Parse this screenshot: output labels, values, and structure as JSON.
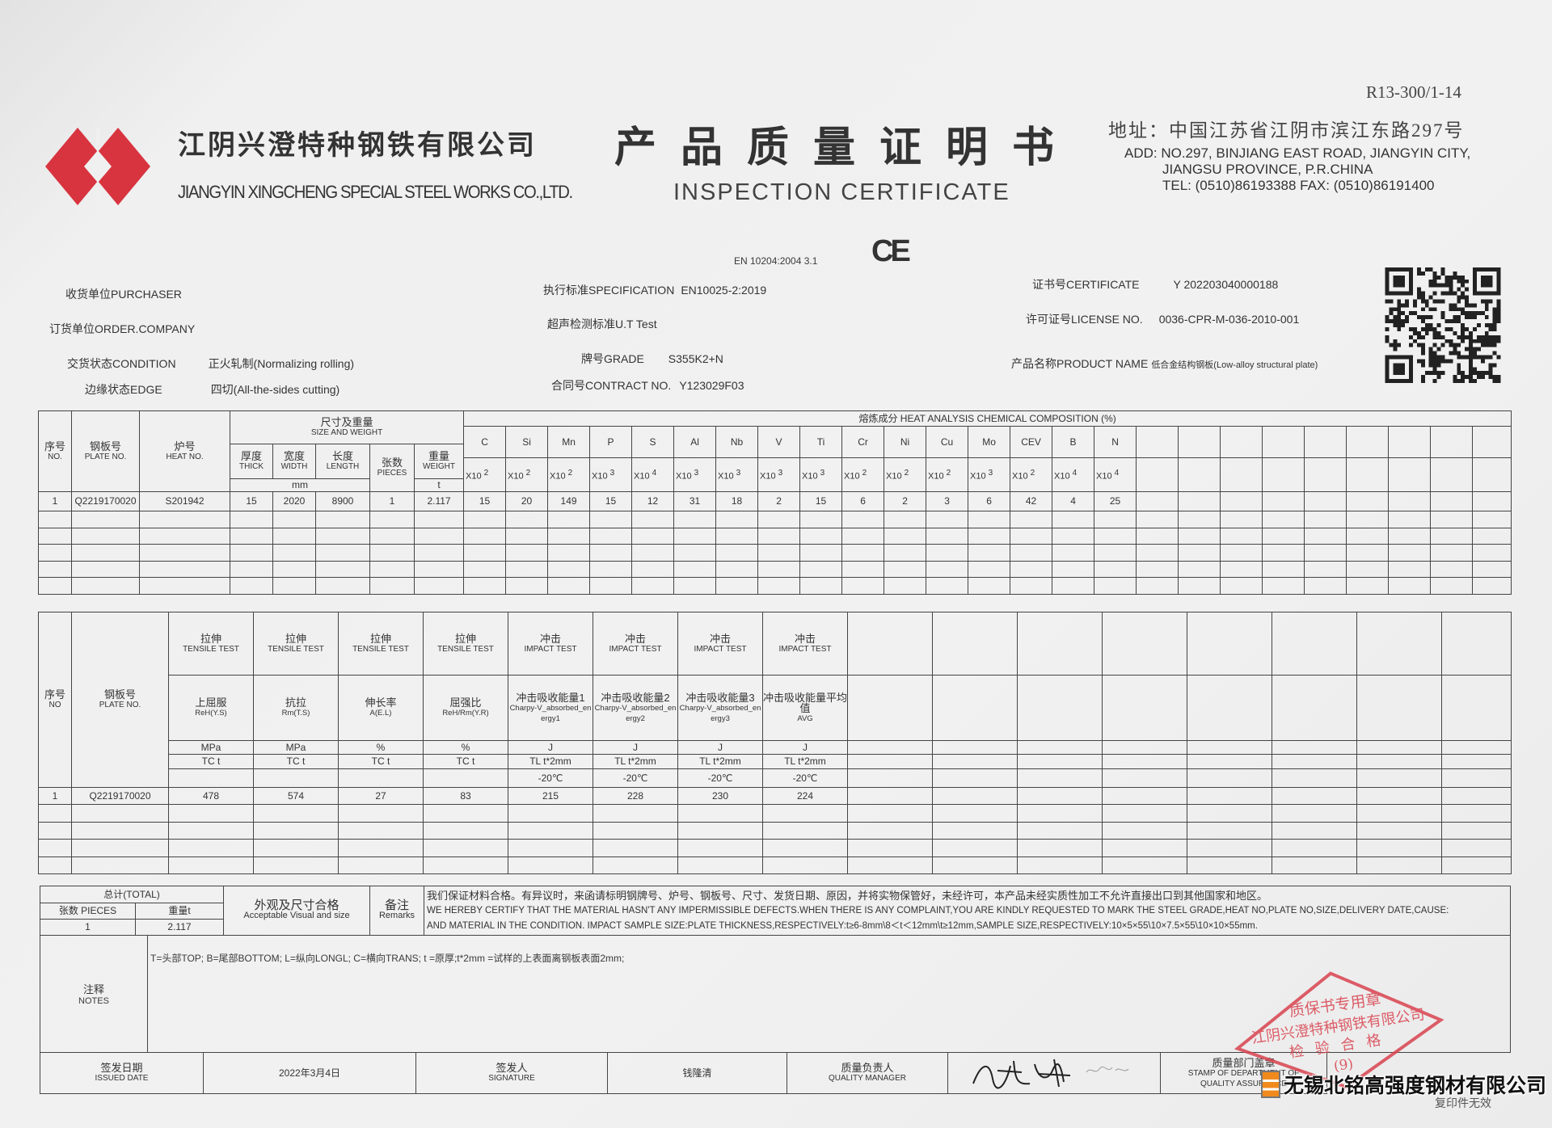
{
  "header": {
    "form_code": "R13-300/1-14",
    "company_cn": "江阴兴澄特种钢铁有限公司",
    "company_en": "JIANGYIN XINGCHENG SPECIAL STEEL WORKS CO.,LTD.",
    "title_cn": "产品质量证明书",
    "title_en": "INSPECTION CERTIFICATE",
    "address_cn": "地址：中国江苏省江阴市滨江东路297号",
    "address_en_1": "ADD:  NO.297, BINJIANG EAST ROAD, JIANGYIN CITY,",
    "address_en_2": "JIANGSU PROVINCE, P.R.CHINA",
    "tel_fax": "TEL: (0510)86193388   FAX: (0510)86191400",
    "en_standard": "EN 10204:2004 3.1",
    "ce_mark": "CE",
    "brand_color": "#d8343f"
  },
  "info": {
    "purchaser_label": "收货单位PURCHASER",
    "order_company_label": "订货单位ORDER.COMPANY",
    "condition_label": "交货状态CONDITION",
    "condition_value": "正火轧制(Normalizing rolling)",
    "edge_label": "边缘状态EDGE",
    "edge_value": "四切(All-the-sides cutting)",
    "spec_label": "执行标准SPECIFICATION",
    "spec_value": "EN10025-2:2019",
    "ut_label": "超声检测标准U.T Test",
    "grade_label": "牌号GRADE",
    "grade_value": "S355K2+N",
    "contract_label": "合同号CONTRACT  NO.",
    "contract_value": "Y123029F03",
    "certificate_label": "证书号CERTIFICATE",
    "certificate_value": "Y 202203040000188",
    "license_label": "许可证号LICENSE  NO.",
    "license_value": "0036-CPR-M-036-2010-001",
    "product_label": "产品名称PRODUCT  NAME",
    "product_value": "低合金结构钢板(Low-alloy structural plate)"
  },
  "chem_table": {
    "no_cn": "序号",
    "no_en": "NO.",
    "plate_cn": "钢板号",
    "plate_en": "PLATE NO.",
    "heat_cn": "炉号",
    "heat_en": "HEAT NO.",
    "size_cn": "尺寸及重量",
    "size_en": "SIZE AND WEIGHT",
    "thick_cn": "厚度",
    "thick_en": "THICK",
    "width_cn": "宽度",
    "width_en": "WIDTH",
    "length_cn": "长度",
    "length_en": "LENGTH",
    "pieces_cn": "张数",
    "pieces_en": "PIECES",
    "weight_cn": "重量",
    "weight_en": "WEIGHT",
    "unit_mm": "mm",
    "unit_t": "t",
    "chem_title": "熔炼成分 HEAT ANALYSIS CHEMICAL COMPOSITION (%)",
    "x10": "X10",
    "elements": [
      {
        "symbol": "C",
        "exp": "2"
      },
      {
        "symbol": "Si",
        "exp": "2"
      },
      {
        "symbol": "Mn",
        "exp": "2"
      },
      {
        "symbol": "P",
        "exp": "3"
      },
      {
        "symbol": "S",
        "exp": "4"
      },
      {
        "symbol": "Al",
        "exp": "3"
      },
      {
        "symbol": "Nb",
        "exp": "3"
      },
      {
        "symbol": "V",
        "exp": "3"
      },
      {
        "symbol": "Ti",
        "exp": "3"
      },
      {
        "symbol": "Cr",
        "exp": "2"
      },
      {
        "symbol": "Ni",
        "exp": "2"
      },
      {
        "symbol": "Cu",
        "exp": "2"
      },
      {
        "symbol": "Mo",
        "exp": "3"
      },
      {
        "symbol": "CEV",
        "exp": "2"
      },
      {
        "symbol": "B",
        "exp": "4"
      },
      {
        "symbol": "N",
        "exp": "4"
      }
    ],
    "rows": [
      {
        "no": "1",
        "plate": "Q2219170020",
        "heat": "S201942",
        "thick": "15",
        "width": "2020",
        "length": "8900",
        "pieces": "1",
        "weight": "2.117",
        "values": [
          "15",
          "20",
          "149",
          "15",
          "12",
          "31",
          "18",
          "2",
          "15",
          "6",
          "2",
          "3",
          "6",
          "42",
          "4",
          "25"
        ]
      }
    ]
  },
  "mech_table": {
    "no_cn": "序号",
    "no_en": "NO",
    "plate_cn": "钢板号",
    "plate_en": "PLATE NO.",
    "tests": [
      {
        "cn": "拉伸",
        "en": "TENSILE TEST",
        "prop_cn": "上屈服",
        "prop_en": "ReH(Y.S)",
        "unit": "MPa",
        "dir": "TC t",
        "temp": ""
      },
      {
        "cn": "拉伸",
        "en": "TENSILE TEST",
        "prop_cn": "抗拉",
        "prop_en": "Rm(T.S)",
        "unit": "MPa",
        "dir": "TC t",
        "temp": ""
      },
      {
        "cn": "拉伸",
        "en": "TENSILE TEST",
        "prop_cn": "伸长率",
        "prop_en": "A(E.L)",
        "unit": "%",
        "dir": "TC t",
        "temp": ""
      },
      {
        "cn": "拉伸",
        "en": "TENSILE TEST",
        "prop_cn": "屈强比",
        "prop_en": "ReH/Rm(Y.R)",
        "unit": "%",
        "dir": "TC t",
        "temp": ""
      },
      {
        "cn": "冲击",
        "en": "IMPACT TEST",
        "prop_cn": "冲击吸收能量1",
        "prop_en": "Charpy-V_absorbed_energy1",
        "unit": "J",
        "dir": "TL t*2mm",
        "temp": "-20℃"
      },
      {
        "cn": "冲击",
        "en": "IMPACT TEST",
        "prop_cn": "冲击吸收能量2",
        "prop_en": "Charpy-V_absorbed_energy2",
        "unit": "J",
        "dir": "TL t*2mm",
        "temp": "-20℃"
      },
      {
        "cn": "冲击",
        "en": "IMPACT TEST",
        "prop_cn": "冲击吸收能量3",
        "prop_en": "Charpy-V_absorbed_energy3",
        "unit": "J",
        "dir": "TL t*2mm",
        "temp": "-20℃"
      },
      {
        "cn": "冲击",
        "en": "IMPACT TEST",
        "prop_cn": "冲击吸收能量平均值",
        "prop_en": "AVG",
        "unit": "J",
        "dir": "TL t*2mm",
        "temp": "-20℃"
      }
    ],
    "rows": [
      {
        "no": "1",
        "plate": "Q2219170020",
        "values": [
          "478",
          "574",
          "27",
          "83",
          "215",
          "228",
          "230",
          "224"
        ]
      }
    ]
  },
  "totals": {
    "title": "总计(TOTAL)",
    "pieces_label": "张数 PIECES",
    "weight_label": "重量t",
    "pieces": "1",
    "weight": "2.117",
    "visual_cn": "外观及尺寸合格",
    "visual_en": "Acceptable Visual and size",
    "remarks_cn": "备注",
    "remarks_en": "Remarks",
    "remarks_line1": "我们保证材料合格。有异议时，来函请标明钢牌号、炉号、钢板号、尺寸、发货日期、原因，并将实物保管好，未经许可，本产品未经实质性加工不允许直接出口到其他国家和地区。",
    "remarks_line2": "WE HEREBY CERTIFY THAT THE MATERIAL HASN'T ANY IMPERMISSIBLE DEFECTS.WHEN THERE IS ANY COMPLAINT,YOU ARE KINDLY REQUESTED TO MARK THE STEEL GRADE,HEAT NO,PLATE NO,SIZE,DELIVERY DATE,CAUSE:",
    "remarks_line3": "AND MATERIAL IN THE CONDITION. IMPACT SAMPLE SIZE:PLATE THICKNESS,RESPECTIVELY:t≥6-8mm\\8＜t＜12mm\\t≥12mm,SAMPLE SIZE,RESPECTIVELY:10×5×55\\10×7.5×55\\10×10×55mm."
  },
  "notes": {
    "label_cn": "注释",
    "label_en": "NOTES",
    "text": "T=头部TOP; B=尾部BOTTOM; L=纵向LONGL; C=横向TRANS; t =原厚;t*2mm =试样的上表面离钢板表面2mm;"
  },
  "signoff": {
    "issued_cn": "签发日期",
    "issued_en": "ISSUED DATE",
    "issued_date": "2022年3月4日",
    "signature_cn": "签发人",
    "signature_en": "SIGNATURE",
    "signer": "钱隆清",
    "qm_cn": "质量负责人",
    "qm_en": "QUALITY MANAGER",
    "stamp_cn": "质量部门盖章",
    "stamp_en_1": "STAMP OF DEPARTMENT OF",
    "stamp_en_2": "QUALITY ASSURANCE"
  },
  "stamp": {
    "line1": "质保书专用章",
    "line2": "江阴兴澄特种钢铁有限公司",
    "line3": "检验合格",
    "line4": "(9)",
    "color": "#d9434f"
  },
  "footer": {
    "copy_invalid": "复印件无效",
    "watermark": "无锡北铭高强度钢材有限公司"
  }
}
